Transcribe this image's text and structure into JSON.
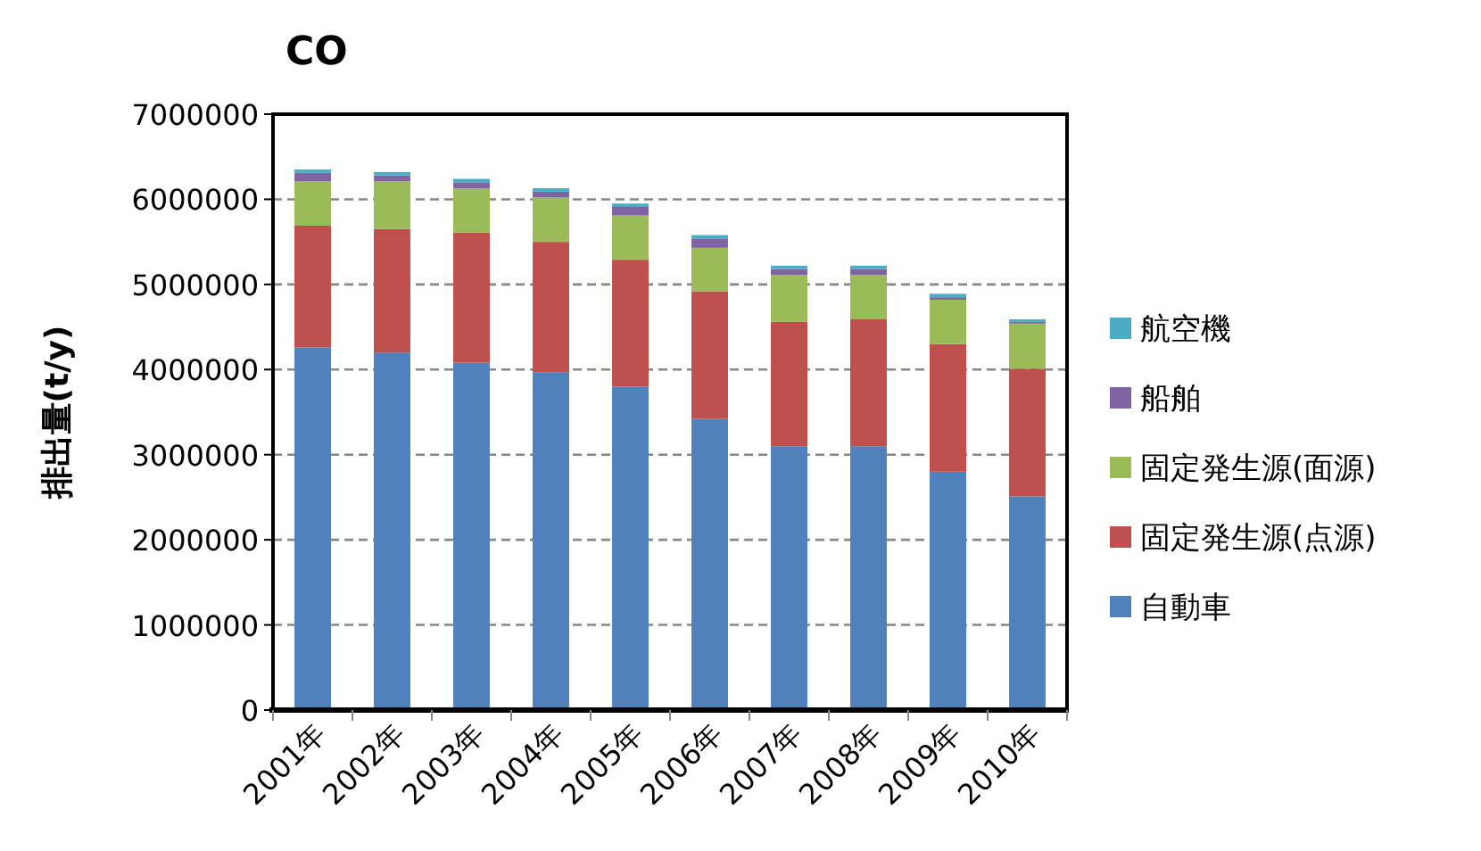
{
  "chart_data": {
    "type": "bar",
    "title": "CO",
    "ylabel": "排出量(t/y)",
    "stacked": true,
    "categories": [
      "2001年",
      "2002年",
      "2003年",
      "2004年",
      "2005年",
      "2006年",
      "2007年",
      "2008年",
      "2009年",
      "2010年"
    ],
    "series": [
      {
        "name": "自動車",
        "color": "#4f81bd",
        "values": [
          4260000,
          4200000,
          4080000,
          3970000,
          3800000,
          3420000,
          3100000,
          3100000,
          2800000,
          2510000
        ]
      },
      {
        "name": "固定発生源(点源)",
        "color": "#c0504d",
        "values": [
          1430000,
          1450000,
          1530000,
          1530000,
          1490000,
          1500000,
          1460000,
          1490000,
          1500000,
          1500000
        ]
      },
      {
        "name": "固定発生源(面源)",
        "color": "#9bbb59",
        "values": [
          520000,
          560000,
          520000,
          520000,
          520000,
          510000,
          550000,
          520000,
          520000,
          530000
        ]
      },
      {
        "name": "船舶",
        "color": "#8064a2",
        "values": [
          100000,
          70000,
          70000,
          70000,
          100000,
          110000,
          70000,
          70000,
          30000,
          20000
        ]
      },
      {
        "name": "航空機",
        "color": "#4bacc6",
        "values": [
          40000,
          40000,
          40000,
          40000,
          40000,
          40000,
          40000,
          40000,
          40000,
          30000
        ]
      }
    ],
    "ylim": [
      0,
      7000000
    ],
    "yticks": [
      0,
      1000000,
      2000000,
      3000000,
      4000000,
      5000000,
      6000000,
      7000000
    ],
    "grid": "y",
    "legend": "right"
  }
}
